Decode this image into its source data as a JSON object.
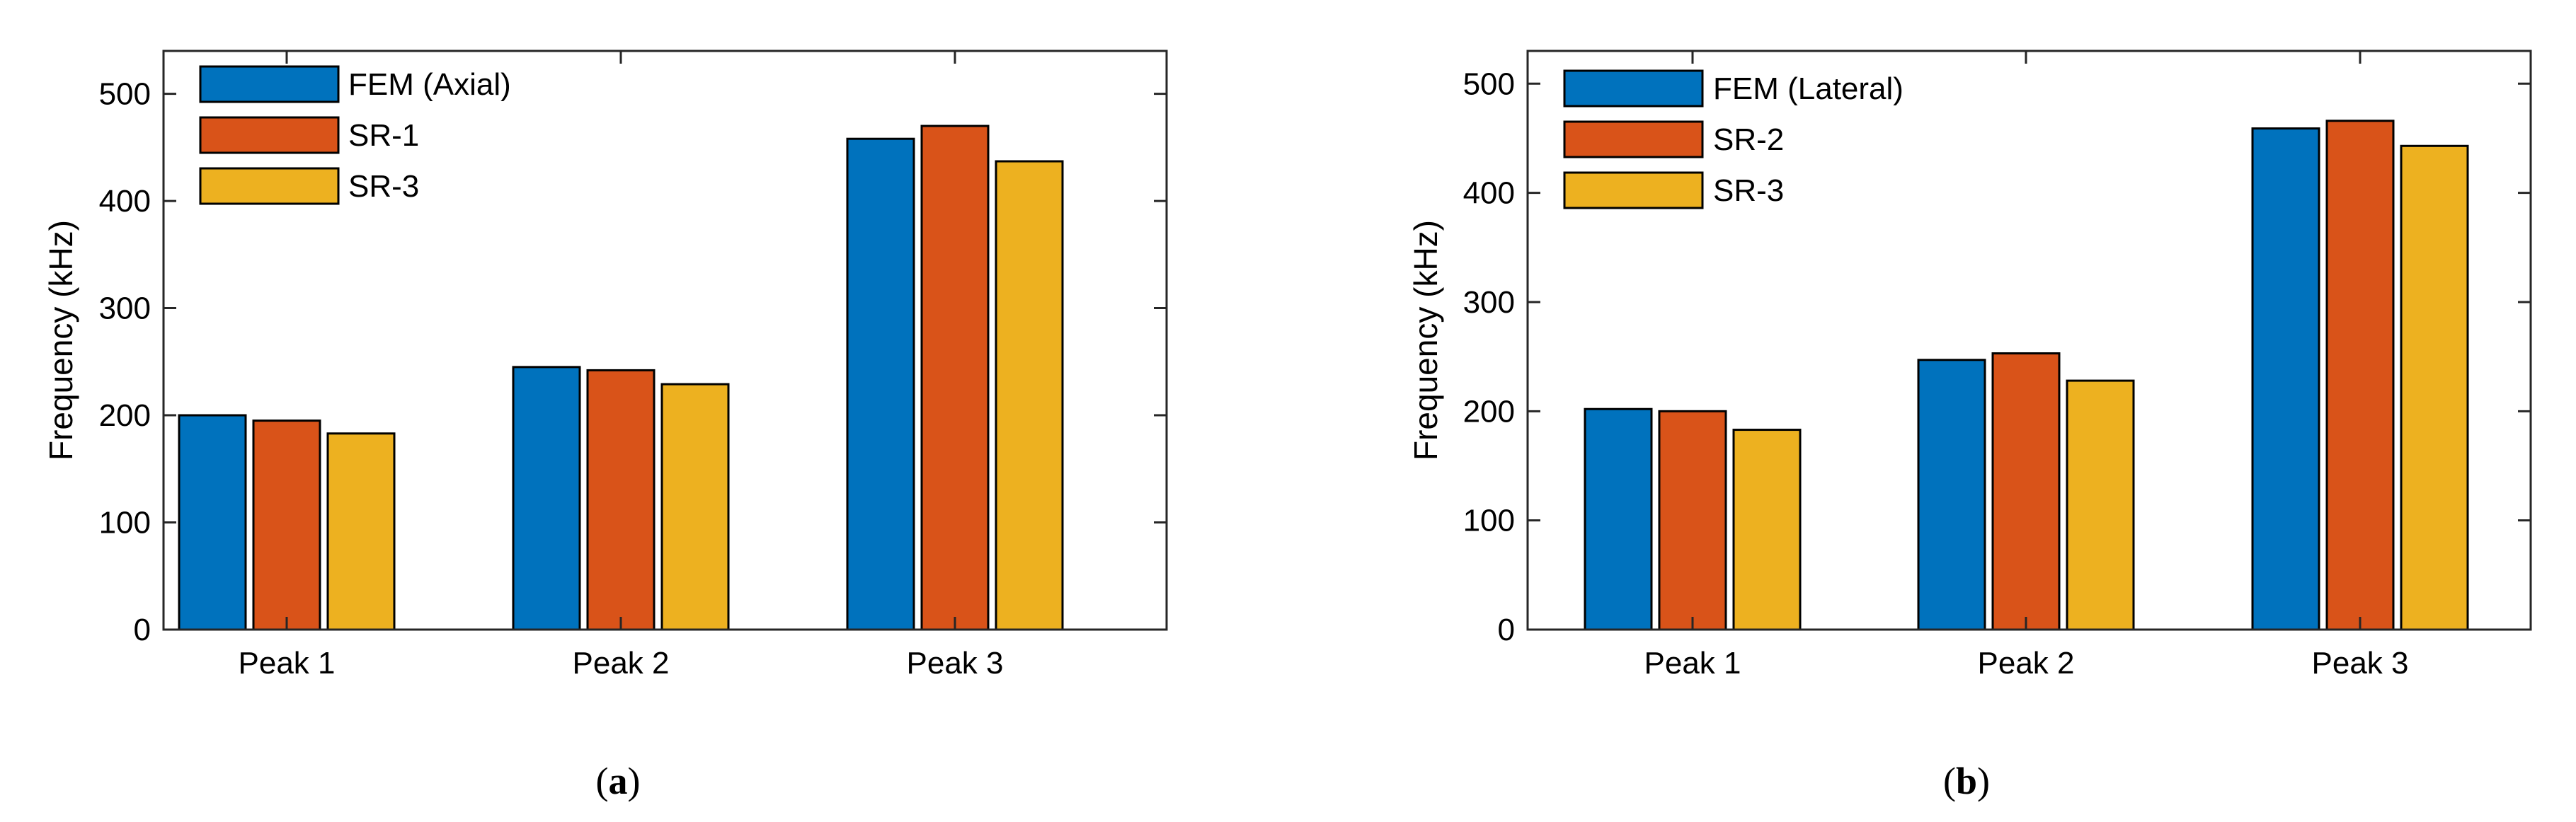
{
  "chart_data": [
    {
      "type": "bar",
      "title": "",
      "xlabel": "",
      "ylabel": "Frequency (kHz)",
      "ylim": [
        0,
        540
      ],
      "yticks": [
        0,
        100,
        200,
        300,
        400,
        500
      ],
      "grid": false,
      "legend_position": "top-left",
      "categories": [
        "Peak 1",
        "Peak 2",
        "Peak 3"
      ],
      "series": [
        {
          "name": "FEM (Axial)",
          "color": "#0072BD",
          "values": [
            200,
            245,
            458
          ]
        },
        {
          "name": "SR-1",
          "color": "#D95319",
          "values": [
            195,
            242,
            470
          ]
        },
        {
          "name": "SR-3",
          "color": "#EDB120",
          "values": [
            183,
            229,
            437
          ]
        }
      ],
      "caption": "a"
    },
    {
      "type": "bar",
      "title": "",
      "xlabel": "",
      "ylabel": "Frequency (kHz)",
      "ylim": [
        0,
        530
      ],
      "yticks": [
        0,
        100,
        200,
        300,
        400,
        500
      ],
      "grid": false,
      "legend_position": "top-left",
      "categories": [
        "Peak 1",
        "Peak 2",
        "Peak 3"
      ],
      "series": [
        {
          "name": "FEM (Lateral)",
          "color": "#0072BD",
          "values": [
            202,
            247,
            459
          ]
        },
        {
          "name": "SR-2",
          "color": "#D95319",
          "values": [
            200,
            253,
            466
          ]
        },
        {
          "name": "SR-3",
          "color": "#EDB120",
          "values": [
            183,
            228,
            443
          ]
        }
      ],
      "caption": "b"
    }
  ]
}
